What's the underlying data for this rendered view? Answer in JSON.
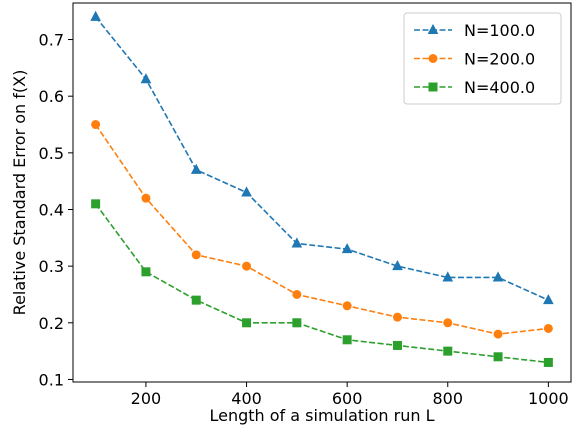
{
  "chart_data": {
    "type": "line",
    "title": "",
    "xlabel": "Length of a simulation run L",
    "ylabel": "Relative Standard Error on f(X)",
    "x": [
      100,
      200,
      300,
      400,
      500,
      600,
      700,
      800,
      900,
      1000
    ],
    "xlim": [
      55,
      1045
    ],
    "ylim": [
      0.0955,
      0.7645
    ],
    "xticks": [
      200,
      400,
      600,
      800,
      1000
    ],
    "yticks": [
      0.1,
      0.2,
      0.3,
      0.4,
      0.5,
      0.6,
      0.7
    ],
    "xtick_labels": [
      "200",
      "400",
      "600",
      "800",
      "1000"
    ],
    "ytick_labels": [
      "0.1",
      "0.2",
      "0.3",
      "0.4",
      "0.5",
      "0.6",
      "0.7"
    ],
    "grid": false,
    "legend_position": "top-right",
    "series": [
      {
        "name": "N=100.0",
        "color": "#1f77b4",
        "marker": "triangle",
        "values": [
          0.74,
          0.63,
          0.47,
          0.43,
          0.34,
          0.33,
          0.3,
          0.28,
          0.28,
          0.24
        ]
      },
      {
        "name": "N=200.0",
        "color": "#ff7f0e",
        "marker": "circle",
        "values": [
          0.55,
          0.42,
          0.32,
          0.3,
          0.25,
          0.23,
          0.21,
          0.2,
          0.18,
          0.19
        ]
      },
      {
        "name": "N=400.0",
        "color": "#2ca02c",
        "marker": "square",
        "values": [
          0.41,
          0.29,
          0.24,
          0.2,
          0.2,
          0.17,
          0.16,
          0.15,
          0.14,
          0.13
        ]
      }
    ]
  }
}
